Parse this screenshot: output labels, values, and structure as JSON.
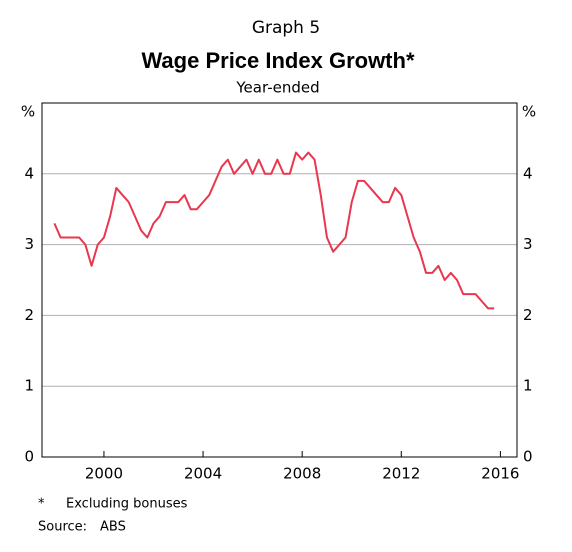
{
  "chart_data": {
    "type": "line",
    "kicker": "Graph 5",
    "title": "Wage Price Index Growth*",
    "subtitle": "Year-ended",
    "y_unit": "%",
    "x": [
      1998.0,
      1998.25,
      1998.5,
      1998.75,
      1999.0,
      1999.25,
      1999.5,
      1999.75,
      2000.0,
      2000.25,
      2000.5,
      2000.75,
      2001.0,
      2001.25,
      2001.5,
      2001.75,
      2002.0,
      2002.25,
      2002.5,
      2002.75,
      2003.0,
      2003.25,
      2003.5,
      2003.75,
      2004.0,
      2004.25,
      2004.5,
      2004.75,
      2005.0,
      2005.25,
      2005.5,
      2005.75,
      2006.0,
      2006.25,
      2006.5,
      2006.75,
      2007.0,
      2007.25,
      2007.5,
      2007.75,
      2008.0,
      2008.25,
      2008.5,
      2008.75,
      2009.0,
      2009.25,
      2009.5,
      2009.75,
      2010.0,
      2010.25,
      2010.5,
      2010.75,
      2011.0,
      2011.25,
      2011.5,
      2011.75,
      2012.0,
      2012.25,
      2012.5,
      2012.75,
      2013.0,
      2013.25,
      2013.5,
      2013.75,
      2014.0,
      2014.25,
      2014.5,
      2014.75,
      2015.0,
      2015.25,
      2015.5,
      2015.75
    ],
    "series": [
      {
        "name": "Wage Price Index",
        "color": "#e8374e",
        "values": [
          3.3,
          3.1,
          3.1,
          3.1,
          3.1,
          3.0,
          2.7,
          3.0,
          3.1,
          3.4,
          3.8,
          3.7,
          3.6,
          3.4,
          3.2,
          3.1,
          3.3,
          3.4,
          3.6,
          3.6,
          3.6,
          3.7,
          3.5,
          3.5,
          3.6,
          3.7,
          3.9,
          4.1,
          4.2,
          4.0,
          4.1,
          4.2,
          4.0,
          4.2,
          4.0,
          4.0,
          4.2,
          4.0,
          4.0,
          4.3,
          4.2,
          4.3,
          4.2,
          3.7,
          3.1,
          2.9,
          3.0,
          3.1,
          3.6,
          3.9,
          3.9,
          3.8,
          3.7,
          3.6,
          3.6,
          3.8,
          3.7,
          3.4,
          3.1,
          2.9,
          2.6,
          2.6,
          2.7,
          2.5,
          2.6,
          2.5,
          2.3,
          2.3,
          2.3,
          2.2,
          2.1,
          2.1
        ]
      }
    ],
    "xlim": [
      1997.5,
      2016.67
    ],
    "xticks": [
      2000,
      2004,
      2008,
      2012,
      2016
    ],
    "ylim": [
      0,
      5
    ],
    "yticks": [
      0,
      1,
      2,
      3,
      4
    ],
    "grid": true,
    "notes": [
      {
        "marker": "*",
        "text": "Excluding bonuses"
      }
    ],
    "source": {
      "label": "Source:",
      "text": "ABS"
    }
  }
}
